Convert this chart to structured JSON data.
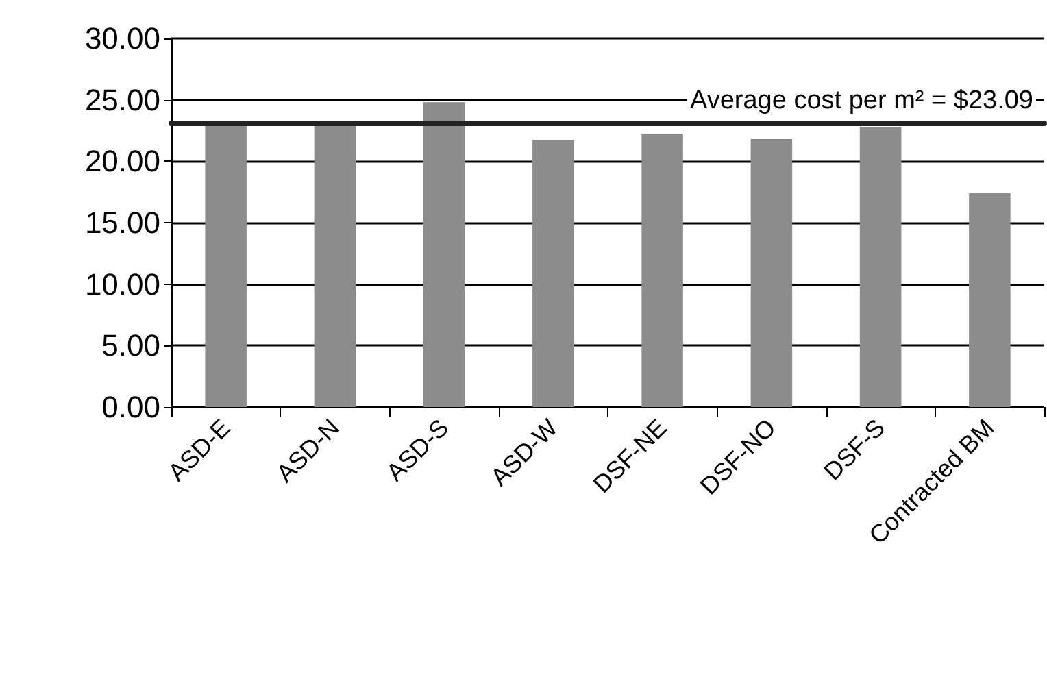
{
  "chart_data": {
    "type": "bar",
    "categories": [
      "ASD-E",
      "ASD-N",
      "ASD-S",
      "ASD-W",
      "DSF-NE",
      "DSF-NO",
      "DSF-S",
      "Contracted BM"
    ],
    "values": [
      23.0,
      22.9,
      24.8,
      21.7,
      22.2,
      21.8,
      22.8,
      17.4
    ],
    "color": "#8c8c8c",
    "ylim": [
      0,
      30
    ],
    "yticks": [
      {
        "value": 0,
        "label": "0.00"
      },
      {
        "value": 5,
        "label": "5.00"
      },
      {
        "value": 10,
        "label": "10.00"
      },
      {
        "value": 15,
        "label": "15.00"
      },
      {
        "value": 20,
        "label": "20.00"
      },
      {
        "value": 25,
        "label": "25.00"
      },
      {
        "value": 30,
        "label": "30.00"
      }
    ],
    "grid": "y",
    "ref_lines": [
      {
        "axis": "y",
        "value": 23.09,
        "label": "Average cost per m² = $23.09",
        "color": "#222222",
        "line_style": "solid"
      }
    ]
  }
}
